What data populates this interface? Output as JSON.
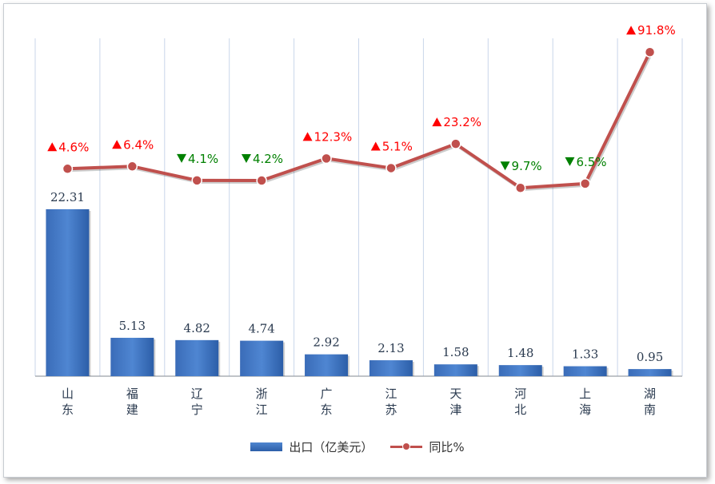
{
  "chart_data": {
    "type": "bar",
    "categories": [
      "山东",
      "福建",
      "辽宁",
      "浙江",
      "广东",
      "江苏",
      "天津",
      "河北",
      "上海",
      "湖南"
    ],
    "series": [
      {
        "name": "出口（亿美元）",
        "type": "bar",
        "values": [
          22.31,
          5.13,
          4.82,
          4.74,
          2.92,
          2.13,
          1.58,
          1.48,
          1.33,
          0.95
        ],
        "labels": [
          "22.31",
          "5.13",
          "4.82",
          "4.74",
          "2.92",
          "2.13",
          "1.58",
          "1.48",
          "1.33",
          "0.95"
        ],
        "color": "#3b72c2"
      },
      {
        "name": "同比%",
        "type": "line",
        "values": [
          4.6,
          6.4,
          -4.1,
          -4.2,
          12.3,
          5.1,
          23.2,
          -9.7,
          -6.5,
          91.8
        ],
        "labels": [
          "4.6%",
          "6.4%",
          "4.1%",
          "4.2%",
          "12.3%",
          "5.1%",
          "23.2%",
          "9.7%",
          "6.5%",
          "91.8%"
        ],
        "color": "#c0504d"
      }
    ],
    "up_color": "#ff0000",
    "down_color": "#008000",
    "grid": "vertical",
    "legend_position": "bottom"
  }
}
